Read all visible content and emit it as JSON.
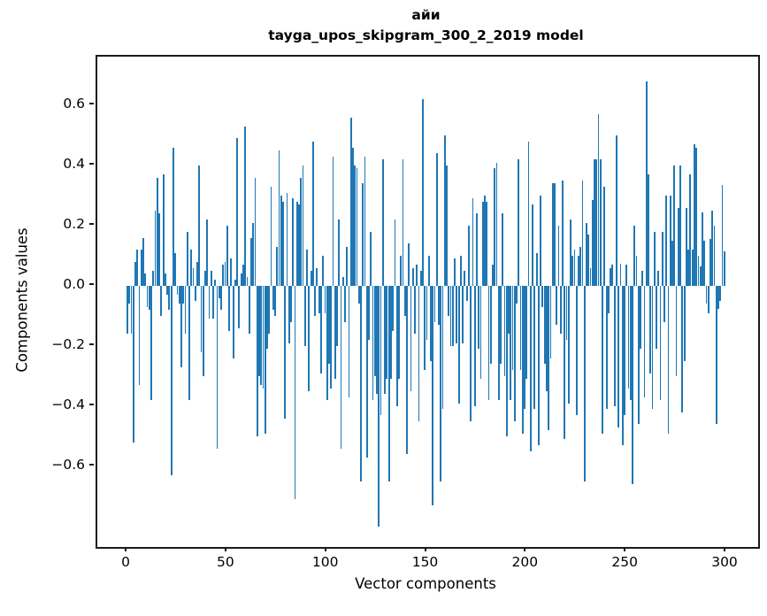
{
  "title": {
    "line1": "айи",
    "line2": "tayga_upos_skipgram_300_2_2019 model"
  },
  "chart_data": {
    "type": "bar",
    "title": "айи — tayga_upos_skipgram_300_2_2019 model",
    "xlabel": "Vector components",
    "ylabel": "Components values",
    "bar_color": "#1f77b4",
    "grid": false,
    "legend": null,
    "xlim": [
      -15,
      315
    ],
    "ylim": [
      -0.87,
      0.76
    ],
    "x_ticks": [
      0,
      50,
      100,
      150,
      200,
      250,
      300
    ],
    "x_tick_labels": [
      "0",
      "50",
      "100",
      "150",
      "200",
      "250",
      "300"
    ],
    "y_ticks": [
      0.6,
      0.4,
      0.2,
      0.0,
      -0.2,
      -0.4,
      -0.6
    ],
    "y_tick_labels": [
      "0.6",
      "0.4",
      "0.2",
      "0.0",
      "−0.2",
      "−0.4",
      "−0.6"
    ],
    "n_components": 300,
    "values": [
      -0.16,
      -0.06,
      -0.16,
      -0.52,
      0.08,
      0.12,
      -0.33,
      0.12,
      0.16,
      0.04,
      -0.07,
      -0.08,
      -0.38,
      0.05,
      0.25,
      0.36,
      0.24,
      -0.1,
      0.37,
      0.04,
      -0.03,
      -0.08,
      -0.63,
      0.46,
      0.11,
      -0.03,
      -0.06,
      -0.27,
      -0.06,
      -0.16,
      0.18,
      -0.38,
      0.12,
      0.06,
      -0.05,
      0.08,
      0.4,
      -0.22,
      -0.3,
      0.05,
      0.22,
      -0.11,
      0.05,
      -0.11,
      0.02,
      -0.54,
      -0.04,
      -0.08,
      0.07,
      0.08,
      0.2,
      -0.15,
      0.09,
      -0.24,
      0.02,
      0.49,
      -0.14,
      0.04,
      0.07,
      0.53,
      0.03,
      -0.16,
      0.16,
      0.21,
      0.36,
      -0.5,
      -0.3,
      -0.33,
      -0.34,
      -0.49,
      -0.21,
      -0.16,
      0.33,
      -0.08,
      -0.1,
      0.13,
      0.45,
      0.3,
      0.28,
      -0.44,
      0.31,
      -0.19,
      -0.12,
      0.29,
      -0.71,
      0.28,
      0.27,
      0.36,
      0.4,
      -0.2,
      0.12,
      -0.35,
      0.05,
      0.48,
      -0.1,
      0.06,
      -0.09,
      -0.29,
      0.1,
      -0.09,
      -0.38,
      -0.26,
      -0.34,
      0.43,
      -0.31,
      -0.2,
      0.22,
      -0.54,
      0.03,
      -0.12,
      0.13,
      -0.37,
      0.56,
      0.46,
      0.4,
      0.39,
      -0.06,
      -0.65,
      0.34,
      0.43,
      -0.57,
      -0.18,
      0.18,
      -0.38,
      -0.3,
      -0.36,
      -0.8,
      -0.43,
      0.42,
      -0.36,
      -0.31,
      -0.65,
      -0.31,
      -0.15,
      0.22,
      -0.4,
      -0.31,
      0.1,
      0.42,
      -0.1,
      -0.56,
      0.14,
      -0.35,
      0.06,
      -0.16,
      0.07,
      -0.45,
      0.05,
      0.62,
      -0.28,
      -0.18,
      0.1,
      -0.25,
      -0.73,
      -0.12,
      0.44,
      -0.13,
      -0.65,
      -0.41,
      0.5,
      0.4,
      -0.1,
      -0.2,
      -0.2,
      0.09,
      -0.19,
      -0.39,
      0.1,
      -0.19,
      0.05,
      -0.05,
      0.2,
      -0.45,
      0.29,
      -0.4,
      0.24,
      -0.21,
      -0.31,
      0.28,
      0.3,
      0.28,
      -0.38,
      -0.26,
      0.07,
      0.39,
      0.41,
      -0.38,
      -0.26,
      0.24,
      -0.3,
      -0.5,
      -0.16,
      -0.38,
      -0.28,
      -0.45,
      -0.06,
      0.42,
      -0.28,
      -0.49,
      -0.41,
      -0.31,
      0.48,
      -0.55,
      0.27,
      -0.41,
      0.11,
      -0.53,
      0.3,
      -0.07,
      -0.26,
      -0.35,
      -0.48,
      -0.24,
      0.34,
      0.34,
      -0.13,
      0.2,
      -0.16,
      0.35,
      -0.51,
      -0.18,
      -0.39,
      0.22,
      0.1,
      0.12,
      -0.43,
      0.1,
      0.13,
      0.35,
      -0.65,
      0.21,
      0.17,
      0.06,
      0.285,
      0.42,
      0.42,
      0.57,
      0.42,
      -0.49,
      0.33,
      -0.41,
      -0.09,
      0.06,
      0.07,
      -0.4,
      0.5,
      -0.47,
      0.075,
      -0.53,
      -0.43,
      0.07,
      -0.34,
      -0.38,
      -0.66,
      0.2,
      0.1,
      -0.46,
      -0.21,
      0.05,
      -0.37,
      0.68,
      0.37,
      -0.29,
      -0.41,
      0.18,
      -0.21,
      0.05,
      -0.38,
      0.18,
      -0.12,
      0.3,
      -0.49,
      0.3,
      0.15,
      0.4,
      -0.3,
      0.26,
      0.4,
      -0.42,
      -0.25,
      0.26,
      0.12,
      0.37,
      0.12,
      0.47,
      0.46,
      0.1,
      0.065,
      0.245,
      0.15,
      -0.06,
      -0.09,
      0.155,
      0.25,
      0.2,
      -0.46,
      -0.075,
      -0.05,
      0.335,
      0.115
    ]
  }
}
